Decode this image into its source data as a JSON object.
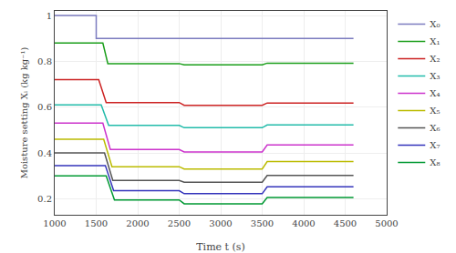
{
  "chart_data": {
    "type": "line",
    "xlabel": "Time t (s)",
    "ylabel": "Moisture setting Xᵢ (kg kg⁻¹)",
    "xlim": [
      1000,
      5000
    ],
    "xticks": [
      1000,
      1500,
      2000,
      2500,
      3000,
      3500,
      4000,
      4500,
      5000
    ],
    "ylim": [
      0.13,
      1.02
    ],
    "yticks": [
      0.2,
      0.4,
      0.6,
      0.8,
      1.0
    ],
    "grid": true,
    "legend": "right",
    "series": [
      {
        "name": "X₀",
        "color": "#7b7bbf",
        "x": [
          1000,
          1500,
          1500,
          4600
        ],
        "values": [
          1.0,
          1.0,
          0.9,
          0.9
        ]
      },
      {
        "name": "X₁",
        "color": "#1a9e1a",
        "x": [
          1000,
          1580,
          1640,
          2500,
          2560,
          3500,
          3560,
          4600
        ],
        "values": [
          0.88,
          0.88,
          0.79,
          0.79,
          0.785,
          0.785,
          0.792,
          0.792
        ]
      },
      {
        "name": "X₂",
        "color": "#cc2222",
        "x": [
          1000,
          1530,
          1620,
          2500,
          2560,
          3500,
          3560,
          4600
        ],
        "values": [
          0.72,
          0.72,
          0.62,
          0.62,
          0.608,
          0.608,
          0.618,
          0.618
        ]
      },
      {
        "name": "X₃",
        "color": "#22bbaa",
        "x": [
          1000,
          1560,
          1650,
          2500,
          2560,
          3500,
          3560,
          4600
        ],
        "values": [
          0.61,
          0.61,
          0.52,
          0.52,
          0.51,
          0.51,
          0.522,
          0.522
        ]
      },
      {
        "name": "X₄",
        "color": "#cc33cc",
        "x": [
          1000,
          1580,
          1670,
          2500,
          2560,
          3500,
          3560,
          4600
        ],
        "values": [
          0.53,
          0.53,
          0.415,
          0.415,
          0.404,
          0.404,
          0.435,
          0.435
        ]
      },
      {
        "name": "X₅",
        "color": "#bbbb00",
        "x": [
          1000,
          1590,
          1690,
          2500,
          2560,
          3500,
          3560,
          4600
        ],
        "values": [
          0.46,
          0.46,
          0.34,
          0.34,
          0.33,
          0.33,
          0.362,
          0.362
        ]
      },
      {
        "name": "X₆",
        "color": "#555555",
        "x": [
          1000,
          1600,
          1700,
          2500,
          2560,
          3500,
          3560,
          4600
        ],
        "values": [
          0.4,
          0.4,
          0.28,
          0.28,
          0.272,
          0.272,
          0.302,
          0.302
        ]
      },
      {
        "name": "X₇",
        "color": "#3333bb",
        "x": [
          1000,
          1610,
          1710,
          2500,
          2560,
          3500,
          3560,
          4600
        ],
        "values": [
          0.345,
          0.345,
          0.235,
          0.235,
          0.222,
          0.222,
          0.252,
          0.252
        ]
      },
      {
        "name": "X₈",
        "color": "#009933",
        "x": [
          1000,
          1620,
          1720,
          2500,
          2560,
          3500,
          3560,
          4600
        ],
        "values": [
          0.3,
          0.3,
          0.195,
          0.195,
          0.178,
          0.178,
          0.205,
          0.205
        ]
      }
    ]
  }
}
